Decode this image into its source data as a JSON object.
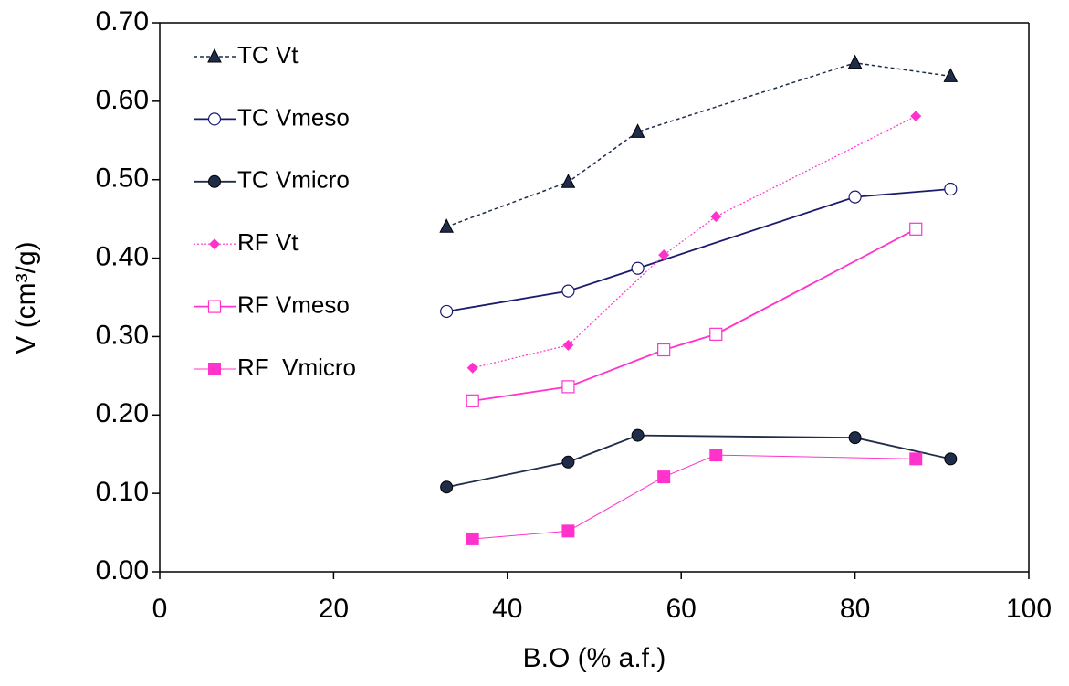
{
  "chart_data": {
    "type": "line",
    "x_label": "B.O (% a.f.)",
    "y_label": "V (cm³/g)",
    "xlim": [
      0,
      100
    ],
    "xticks": [
      0,
      20,
      40,
      60,
      80,
      100
    ],
    "ylim": [
      0,
      0.7
    ],
    "yticks": [
      {
        "value": 0,
        "label": "0.00"
      },
      {
        "value": 0.1,
        "label": "0.10"
      },
      {
        "value": 0.2,
        "label": "0.20"
      },
      {
        "value": 0.3,
        "label": "0.30"
      },
      {
        "value": 0.4,
        "label": "0.40"
      },
      {
        "value": 0.5,
        "label": "0.50"
      },
      {
        "value": 0.6,
        "label": "0.60"
      },
      {
        "value": 0.7,
        "label": "0.70"
      }
    ],
    "legend": "upper left",
    "series": [
      {
        "name": "TC Vt",
        "color": "#1f2d4a",
        "marker": "triangle",
        "dash": "dashed",
        "x": [
          33,
          47,
          55,
          80,
          91
        ],
        "values": [
          0.44,
          0.497,
          0.561,
          0.649,
          0.632
        ]
      },
      {
        "name": "TC Vmeso",
        "color": "#1a1a6e",
        "marker": "open-circle",
        "dash": "solid",
        "x": [
          33,
          47,
          55,
          80,
          91
        ],
        "values": [
          0.332,
          0.358,
          0.387,
          0.478,
          0.488
        ]
      },
      {
        "name": "TC Vmicro",
        "color": "#1f2d4a",
        "marker": "circle",
        "dash": "solid",
        "x": [
          33,
          47,
          55,
          80,
          91
        ],
        "values": [
          0.108,
          0.14,
          0.174,
          0.171,
          0.144
        ]
      },
      {
        "name": "RF Vt",
        "color": "#ff33cc",
        "marker": "diamond",
        "dash": "dotted",
        "x": [
          36,
          47,
          58,
          64,
          87
        ],
        "values": [
          0.26,
          0.289,
          0.404,
          0.453,
          0.581
        ]
      },
      {
        "name": "RF Vmeso",
        "color": "#ff33cc",
        "marker": "open-square",
        "dash": "solid",
        "x": [
          36,
          47,
          58,
          64,
          87
        ],
        "values": [
          0.218,
          0.236,
          0.283,
          0.303,
          0.437
        ]
      },
      {
        "name": "RF  Vmicro",
        "color": "#ff33cc",
        "marker": "square",
        "dash": "thin",
        "x": [
          36,
          47,
          58,
          64,
          87
        ],
        "values": [
          0.042,
          0.052,
          0.121,
          0.149,
          0.144
        ]
      }
    ]
  }
}
